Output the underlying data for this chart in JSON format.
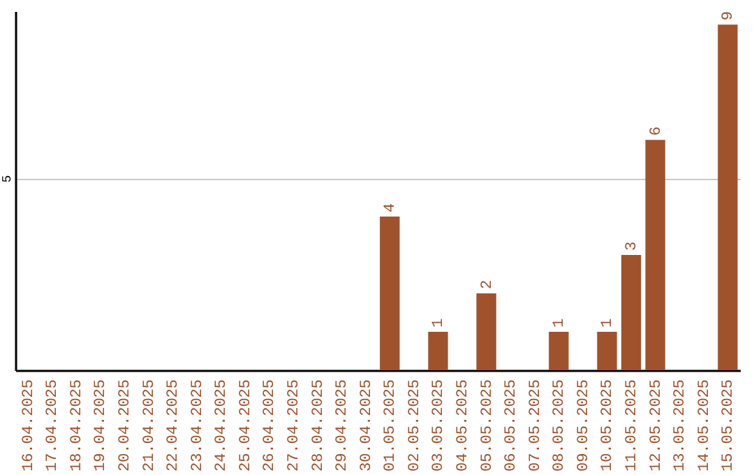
{
  "chart_data": {
    "type": "bar",
    "categories": [
      "16.04.2025",
      "17.04.2025",
      "18.04.2025",
      "19.04.2025",
      "20.04.2025",
      "21.04.2025",
      "22.04.2025",
      "23.04.2025",
      "24.04.2025",
      "25.04.2025",
      "26.04.2025",
      "27.04.2025",
      "28.04.2025",
      "29.04.2025",
      "30.04.2025",
      "01.05.2025",
      "02.05.2025",
      "03.05.2025",
      "04.05.2025",
      "05.05.2025",
      "06.05.2025",
      "07.05.2025",
      "08.05.2025",
      "09.05.2025",
      "10.05.2025",
      "11.05.2025",
      "12.05.2025",
      "13.05.2025",
      "14.05.2025",
      "15.05.2025"
    ],
    "values": [
      null,
      null,
      null,
      null,
      null,
      null,
      null,
      null,
      null,
      null,
      null,
      null,
      null,
      null,
      null,
      4,
      null,
      1,
      null,
      2,
      null,
      null,
      1,
      null,
      1,
      3,
      6,
      null,
      null,
      9
    ],
    "value_labels": [
      null,
      null,
      null,
      null,
      null,
      null,
      null,
      null,
      null,
      null,
      null,
      null,
      null,
      null,
      null,
      "4",
      null,
      "1",
      null,
      "2",
      null,
      null,
      "1",
      null,
      "1",
      "3",
      "6",
      null,
      null,
      "9"
    ],
    "color": "#a0522d",
    "ylim": [
      0,
      9.35
    ],
    "yticks": [
      5
    ],
    "grid": "y"
  }
}
